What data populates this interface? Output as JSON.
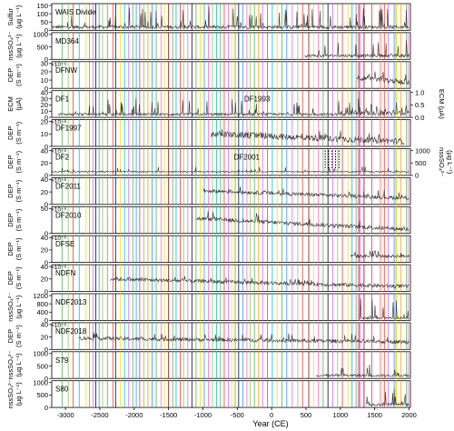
{
  "chart_data": {
    "type": "line",
    "x_axis": {
      "label": "Year (CE)",
      "lim": [
        -3200,
        2020
      ],
      "ticks": [
        -3000,
        -2500,
        -2000,
        -1500,
        -1000,
        -500,
        0,
        500,
        1000,
        1500,
        2000
      ]
    },
    "palette": [
      "#e53935",
      "#ff66cc",
      "#4caf50",
      "#8bc34a",
      "#ffd600",
      "#cc66ff",
      "#2196f3",
      "#ff9800",
      "#8b0000",
      "#00bcd4",
      "#000000"
    ],
    "event_markers": [
      {
        "year": -3050,
        "color_index": 2
      },
      {
        "year": -2960,
        "color_index": 3
      },
      {
        "year": -2890,
        "color_index": 0
      },
      {
        "year": -2800,
        "color_index": 9
      },
      {
        "year": -2700,
        "color_index": 4
      },
      {
        "year": -2650,
        "color_index": 2
      },
      {
        "year": -2600,
        "color_index": 5
      },
      {
        "year": -2560,
        "color_index": 10
      },
      {
        "year": -2510,
        "color_index": 6
      },
      {
        "year": -2460,
        "color_index": 3
      },
      {
        "year": -2390,
        "color_index": 2
      },
      {
        "year": -2310,
        "color_index": 0
      },
      {
        "year": -2270,
        "color_index": 10
      },
      {
        "year": -2200,
        "color_index": 4
      },
      {
        "year": -2140,
        "color_index": 9
      },
      {
        "year": -2080,
        "color_index": 5
      },
      {
        "year": -2020,
        "color_index": 2
      },
      {
        "year": -1970,
        "color_index": 6
      },
      {
        "year": -1920,
        "color_index": 0
      },
      {
        "year": -1860,
        "color_index": 3
      },
      {
        "year": -1800,
        "color_index": 7
      },
      {
        "year": -1740,
        "color_index": 6
      },
      {
        "year": -1680,
        "color_index": 2
      },
      {
        "year": -1610,
        "color_index": 1
      },
      {
        "year": -1560,
        "color_index": 4
      },
      {
        "year": -1500,
        "color_index": 8
      },
      {
        "year": -1440,
        "color_index": 2
      },
      {
        "year": -1390,
        "color_index": 9
      },
      {
        "year": -1330,
        "color_index": 0
      },
      {
        "year": -1280,
        "color_index": 3
      },
      {
        "year": -1220,
        "color_index": 5
      },
      {
        "year": -1160,
        "color_index": 10
      },
      {
        "year": -1100,
        "color_index": 2
      },
      {
        "year": -1040,
        "color_index": 4
      },
      {
        "year": -980,
        "color_index": 6
      },
      {
        "year": -920,
        "color_index": 1
      },
      {
        "year": -860,
        "color_index": 3
      },
      {
        "year": -800,
        "color_index": 9
      },
      {
        "year": -745,
        "color_index": 2
      },
      {
        "year": -690,
        "color_index": 0
      },
      {
        "year": -630,
        "color_index": 5
      },
      {
        "year": -580,
        "color_index": 4
      },
      {
        "year": -530,
        "color_index": 2
      },
      {
        "year": -480,
        "color_index": 10
      },
      {
        "year": -420,
        "color_index": 6
      },
      {
        "year": -360,
        "color_index": 1
      },
      {
        "year": -310,
        "color_index": 3
      },
      {
        "year": -250,
        "color_index": 2
      },
      {
        "year": -190,
        "color_index": 7
      },
      {
        "year": -130,
        "color_index": 5
      },
      {
        "year": -60,
        "color_index": 0
      },
      {
        "year": 10,
        "color_index": 9
      },
      {
        "year": 80,
        "color_index": 4
      },
      {
        "year": 150,
        "color_index": 2
      },
      {
        "year": 220,
        "color_index": 6
      },
      {
        "year": 300,
        "color_index": 5
      },
      {
        "year": 380,
        "color_index": 3
      },
      {
        "year": 450,
        "color_index": 0
      },
      {
        "year": 540,
        "color_index": 8
      },
      {
        "year": 610,
        "color_index": 4
      },
      {
        "year": 680,
        "color_index": 1
      },
      {
        "year": 750,
        "color_index": 2
      },
      {
        "year": 820,
        "color_index": 10
      },
      {
        "year": 890,
        "color_index": 5
      },
      {
        "year": 960,
        "color_index": 3
      },
      {
        "year": 1030,
        "color_index": 0
      },
      {
        "year": 1110,
        "color_index": 4
      },
      {
        "year": 1171,
        "color_index": 6
      },
      {
        "year": 1229,
        "color_index": 2
      },
      {
        "year": 1258,
        "color_index": 1
      },
      {
        "year": 1276,
        "color_index": 0
      },
      {
        "year": 1286,
        "color_index": 1
      },
      {
        "year": 1345,
        "color_index": 8
      },
      {
        "year": 1459,
        "color_index": 0
      },
      {
        "year": 1580,
        "color_index": 1
      },
      {
        "year": 1600,
        "color_index": 4
      },
      {
        "year": 1641,
        "color_index": 0
      },
      {
        "year": 1695,
        "color_index": 5
      },
      {
        "year": 1783,
        "color_index": 6
      },
      {
        "year": 1809,
        "color_index": 3
      },
      {
        "year": 1815,
        "color_index": 4
      },
      {
        "year": 1883,
        "color_index": 7
      },
      {
        "year": 1963,
        "color_index": 2
      },
      {
        "year": 1991,
        "color_index": 1
      }
    ],
    "panels": [
      {
        "id": "wais",
        "label": "WAIS Divide",
        "ylabel": [
          "Sulfur",
          "(µg L⁻¹)"
        ],
        "side": "left",
        "ylim": [
          0,
          150
        ],
        "ticks": [
          0,
          50,
          100,
          150
        ],
        "exp": "",
        "series": [
          {
            "x_range": [
              -3200,
              2000
            ],
            "base": 20,
            "noise": 10,
            "spikes": 55,
            "spike_height": 120
          }
        ]
      },
      {
        "id": "md364",
        "label": "MD364",
        "ylabel": [
          "nssSO₄²⁻",
          "(µg L⁻¹)"
        ],
        "side": "left",
        "ylim": [
          0,
          1000
        ],
        "ticks": [
          0,
          500,
          1000
        ],
        "exp": "",
        "series": [
          {
            "x_range": [
              480,
              2000
            ],
            "base": 150,
            "noise": 60,
            "spikes": 14,
            "spike_height": 600
          }
        ]
      },
      {
        "id": "dfnw",
        "label": "DFNW",
        "ylabel": [
          "DEP",
          "(S m⁻¹)"
        ],
        "side": "left",
        "ylim": [
          0,
          30
        ],
        "ticks": [
          0,
          10,
          20,
          30
        ],
        "exp": "×10⁻⁶",
        "series": [
          {
            "x_range": [
              1240,
              2000
            ],
            "base": 13,
            "noise": 3,
            "spikes": 12,
            "spike_height": 16,
            "trend": -6
          }
        ]
      },
      {
        "id": "df1",
        "label": "DF1",
        "label2": "DF1993",
        "ylabel": [
          "ECM",
          "(µA)"
        ],
        "side": "left",
        "ylim": [
          0,
          40
        ],
        "ticks": [
          0,
          10,
          20,
          30,
          40
        ],
        "exp": "",
        "right_axis": {
          "ylabel": [
            "ECM (µA)"
          ],
          "ylim": [
            0,
            1.0
          ],
          "ticks": [
            0.0,
            0.5,
            1.0
          ]
        },
        "series": [
          {
            "x_range": [
              -3100,
              1000
            ],
            "base": 5,
            "noise": 2,
            "spikes": 40,
            "spike_height": 25
          },
          {
            "x_range": [
              1000,
              2000
            ],
            "base": 7,
            "noise": 4,
            "spikes": 25,
            "spike_height": 22
          }
        ]
      },
      {
        "id": "df1997",
        "label": "DF1997",
        "ylabel": [
          "DEP",
          "(S m⁻¹)"
        ],
        "side": "left",
        "ylim": [
          0,
          20
        ],
        "ticks": [
          0,
          10,
          20
        ],
        "exp": "×10⁻⁶",
        "series": [
          {
            "x_range": [
              -880,
              1930
            ],
            "base": 10,
            "noise": 2.5,
            "spikes": 20,
            "spike_height": 7,
            "trend": -6
          }
        ]
      },
      {
        "id": "df2",
        "label": "DF2",
        "label2": "DF2001",
        "ylabel": [
          "DEP",
          "(S m⁻¹)"
        ],
        "side": "left",
        "ylim": [
          0,
          40
        ],
        "ticks": [
          0,
          20,
          40
        ],
        "exp": "×10⁻⁶",
        "right_axis": {
          "ylabel": [
            "nssSO₄²⁻",
            "(µg L⁻¹)"
          ],
          "ylim": [
            0,
            1000
          ],
          "ticks": [
            0,
            500,
            1000
          ]
        },
        "series": [
          {
            "x_range": [
              -3200,
              2000
            ],
            "base": 6,
            "noise": 1,
            "spikes": 20,
            "spike_height": 8
          }
        ]
      },
      {
        "id": "df2011",
        "label": "DF2011",
        "ylabel": [
          "DEP",
          "(S m⁻¹)"
        ],
        "side": "left",
        "ylim": [
          0,
          40
        ],
        "ticks": [
          0,
          20,
          40
        ],
        "exp": "×10⁻⁶",
        "series": [
          {
            "x_range": [
              -1000,
              2000
            ],
            "base": 22,
            "noise": 3,
            "spikes": 18,
            "spike_height": 10,
            "trend": -12
          }
        ]
      },
      {
        "id": "df2010",
        "label": "DF2010",
        "ylabel": [
          "DEP",
          "(S m⁻¹)"
        ],
        "side": "left",
        "ylim": [
          0,
          50
        ],
        "ticks": [
          0,
          50
        ],
        "exp": "×10⁻⁶",
        "series": [
          {
            "x_range": [
              -1100,
              2000
            ],
            "base": 30,
            "noise": 4,
            "spikes": 18,
            "spike_height": 15,
            "trend": -22
          }
        ]
      },
      {
        "id": "dfse",
        "label": "DFSE",
        "ylabel": [
          "DEP",
          "(S m⁻¹)"
        ],
        "side": "left",
        "ylim": [
          0,
          40
        ],
        "ticks": [
          0,
          20,
          40
        ],
        "exp": "×10⁻⁶",
        "series": [
          {
            "x_range": [
              1150,
              2000
            ],
            "base": 10,
            "noise": 2.5,
            "spikes": 10,
            "spike_height": 12
          }
        ]
      },
      {
        "id": "ndfn",
        "label": "NDFN",
        "ylabel": [
          "DEP",
          "(S m⁻¹)"
        ],
        "side": "left",
        "ylim": [
          0,
          40
        ],
        "ticks": [
          0,
          20,
          40
        ],
        "exp": "×10⁻⁶",
        "series": [
          {
            "x_range": [
              -2350,
              2000
            ],
            "base": 20,
            "noise": 3,
            "spikes": 25,
            "spike_height": 10,
            "trend": -12
          }
        ]
      },
      {
        "id": "ndf2013",
        "label": "NDF2013",
        "ylabel": [
          "nssSO₄²⁻",
          "(µg L⁻¹)"
        ],
        "side": "left",
        "ylim": [
          0,
          1200
        ],
        "ticks": [
          0,
          400,
          800,
          1200
        ],
        "exp": "",
        "series": [
          {
            "x_range": [
              1280,
              2000
            ],
            "base": 120,
            "noise": 50,
            "spikes": 12,
            "spike_height": 900
          }
        ]
      },
      {
        "id": "ndf2018",
        "label": "NDF2018",
        "ylabel": [
          "DEP",
          "(S m⁻¹)"
        ],
        "side": "left",
        "ylim": [
          0,
          40
        ],
        "ticks": [
          0,
          20,
          40
        ],
        "exp": "×10⁻⁶",
        "series": [
          {
            "x_range": [
              -2800,
              2000
            ],
            "base": 18,
            "noise": 3,
            "spikes": 25,
            "spike_height": 10,
            "trend": -6
          }
        ]
      },
      {
        "id": "s79",
        "label": "S79",
        "ylabel": [
          "nssSO₄²⁻",
          "(µg L⁻¹)"
        ],
        "side": "left",
        "ylim": [
          0,
          1000
        ],
        "ticks": [
          0,
          500,
          1000
        ],
        "exp": "",
        "series": [
          {
            "x_range": [
              650,
              2000
            ],
            "base": 120,
            "noise": 50,
            "spikes": 14,
            "spike_height": 500
          }
        ]
      },
      {
        "id": "s80",
        "label": "S80",
        "ylabel": [
          "nssSO₄²⁻",
          "(µg L⁻¹)"
        ],
        "side": "left",
        "ylim": [
          0,
          1000
        ],
        "ticks": [
          0,
          500,
          1000
        ],
        "exp": "",
        "series": [
          {
            "x_range": [
              1380,
              2000
            ],
            "base": 120,
            "noise": 50,
            "spikes": 10,
            "spike_height": 700
          }
        ]
      }
    ],
    "dotted_markers": {
      "panel": "df2",
      "years": [
        780,
        830,
        880,
        930,
        980
      ],
      "color": "#000000"
    }
  }
}
